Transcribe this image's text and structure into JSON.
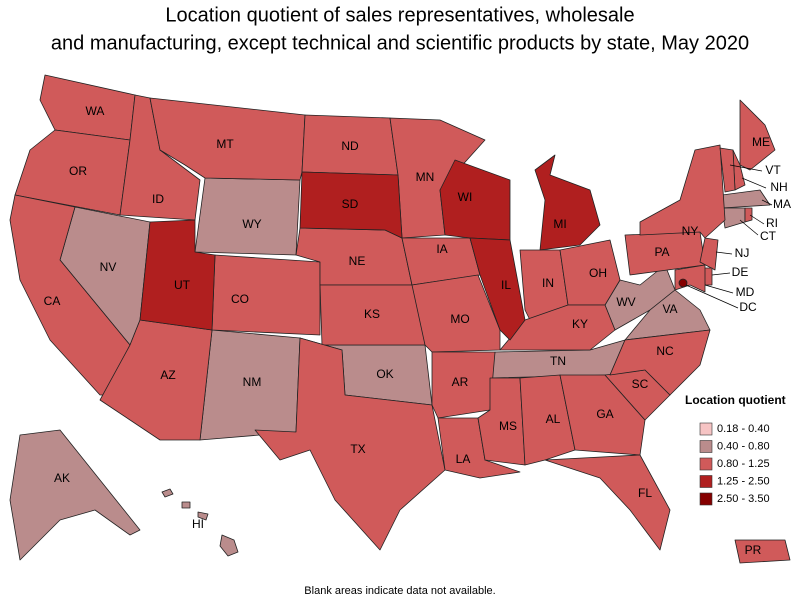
{
  "title": [
    "Location quotient of sales representatives, wholesale",
    "and manufacturing, except technical and scientific products by state, May 2020"
  ],
  "legend": {
    "title": "Location quotient",
    "items": [
      {
        "label": "0.18 - 0.40",
        "color": "#f6c4c4",
        "states": []
      },
      {
        "label": "0.40 - 0.80",
        "color": "#ba8c8c",
        "states": [
          "NV",
          "WY",
          "NM",
          "OK",
          "TN",
          "WV",
          "VA",
          "CT",
          "MA",
          "AK",
          "HI"
        ]
      },
      {
        "label": "0.80 - 1.25",
        "color": "#d05a5a",
        "states": [
          "WA",
          "OR",
          "CA",
          "ID",
          "MT",
          "CO",
          "AZ",
          "ND",
          "NE",
          "KS",
          "TX",
          "MN",
          "IA",
          "MO",
          "AR",
          "LA",
          "IN",
          "OH",
          "KY",
          "MS",
          "AL",
          "GA",
          "FL",
          "SC",
          "NC",
          "PA",
          "NY",
          "NJ",
          "DE",
          "MD",
          "ME",
          "NH",
          "VT",
          "RI",
          "PR"
        ]
      },
      {
        "label": "1.25 - 2.50",
        "color": "#b01f1f",
        "states": [
          "SD",
          "UT",
          "WI",
          "IL",
          "MI"
        ]
      },
      {
        "label": "2.50 - 3.50",
        "color": "#850000",
        "states": [
          "DC"
        ]
      }
    ]
  },
  "note": "Blank areas indicate data not available."
}
